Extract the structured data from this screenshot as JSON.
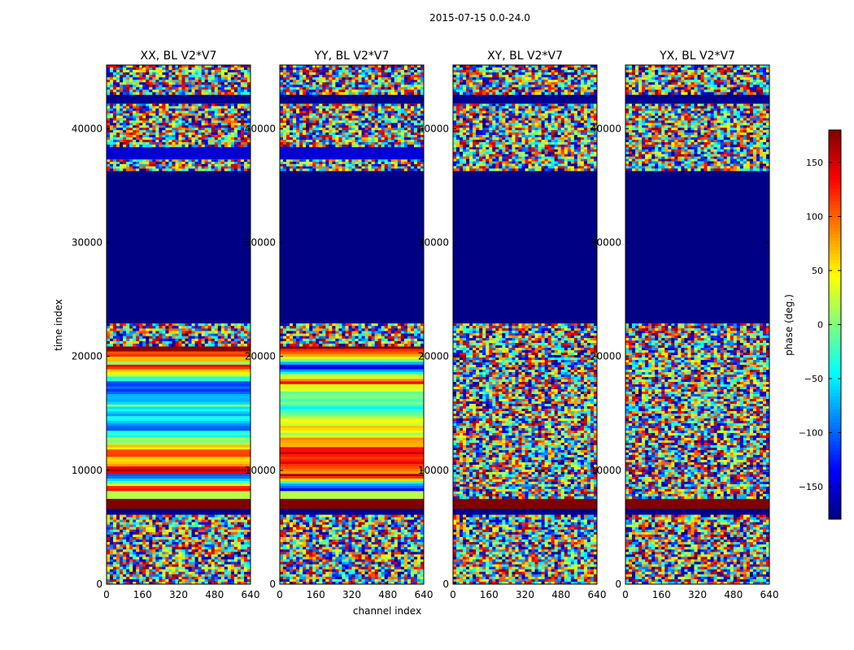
{
  "figure_title": "2015-07-15 0.0-24.0",
  "chart_data": {
    "type": "heatmap",
    "suptitle": "2015-07-15 0.0-24.0",
    "xlabel": "channel index",
    "ylabel": "time index",
    "xlim": [
      0,
      640
    ],
    "ylim": [
      0,
      45600
    ],
    "x_ticks": [
      0,
      160,
      320,
      480,
      640
    ],
    "y_ticks": [
      0,
      10000,
      20000,
      30000,
      40000
    ],
    "colorbar": {
      "label": "phase (deg.)",
      "range": [
        -180,
        180
      ],
      "ticks": [
        -150,
        -100,
        -50,
        0,
        50,
        100,
        150
      ],
      "tick_labels": [
        "−150",
        "−100",
        "−50",
        "0",
        "50",
        "100",
        "150"
      ],
      "colormap": "jet",
      "colors": [
        "#00007f",
        "#0000ff",
        "#007fff",
        "#00ffff",
        "#7fff7f",
        "#ffff00",
        "#ff7f00",
        "#ff0000",
        "#7f0000"
      ]
    },
    "panels": [
      {
        "title": "XX, BL V2*V7",
        "bands": [
          {
            "t0": 0,
            "t1": 6100,
            "kind": "noise"
          },
          {
            "t0": 6100,
            "t1": 6600,
            "phase": -175
          },
          {
            "t0": 6600,
            "t1": 7500,
            "phase": 180
          },
          {
            "t0": 7500,
            "t1": 8200,
            "phase": 20
          },
          {
            "t0": 8200,
            "t1": 9700,
            "kind": "gradient",
            "from": -120,
            "to": 150
          },
          {
            "t0": 9700,
            "t1": 11200,
            "kind": "gradient",
            "from": 60,
            "to": 160
          },
          {
            "t0": 11200,
            "t1": 13500,
            "kind": "gradient",
            "from": -60,
            "to": 140
          },
          {
            "t0": 13500,
            "t1": 15800,
            "kind": "gradient",
            "from": -20,
            "to": -100
          },
          {
            "t0": 15800,
            "t1": 17600,
            "kind": "gradient",
            "from": -110,
            "to": -40
          },
          {
            "t0": 17600,
            "t1": 19300,
            "kind": "gradient",
            "from": 150,
            "to": -80
          },
          {
            "t0": 19300,
            "t1": 20900,
            "kind": "gradient",
            "from": 170,
            "to": 30
          },
          {
            "t0": 20900,
            "t1": 22900,
            "kind": "noise"
          },
          {
            "t0": 22900,
            "t1": 36300,
            "phase": -178
          },
          {
            "t0": 36300,
            "t1": 37300,
            "kind": "noise"
          },
          {
            "t0": 37300,
            "t1": 38400,
            "phase": -150
          },
          {
            "t0": 38400,
            "t1": 42200,
            "kind": "noise"
          },
          {
            "t0": 42200,
            "t1": 43000,
            "phase": -175
          },
          {
            "t0": 43000,
            "t1": 45600,
            "kind": "noise"
          }
        ]
      },
      {
        "title": "YY, BL V2*V7",
        "bands": [
          {
            "t0": 0,
            "t1": 6100,
            "kind": "noise"
          },
          {
            "t0": 6100,
            "t1": 6600,
            "phase": -175
          },
          {
            "t0": 6600,
            "t1": 7500,
            "phase": 180
          },
          {
            "t0": 7500,
            "t1": 8200,
            "phase": 20
          },
          {
            "t0": 8200,
            "t1": 9700,
            "kind": "gradient",
            "from": 150,
            "to": -150
          },
          {
            "t0": 9700,
            "t1": 11200,
            "kind": "gradient",
            "from": 140,
            "to": 100
          },
          {
            "t0": 11200,
            "t1": 13500,
            "kind": "gradient",
            "from": 20,
            "to": 150
          },
          {
            "t0": 13500,
            "t1": 15800,
            "kind": "gradient",
            "from": -40,
            "to": 60
          },
          {
            "t0": 15800,
            "t1": 17600,
            "kind": "gradient",
            "from": 30,
            "to": -30
          },
          {
            "t0": 17600,
            "t1": 19300,
            "kind": "gradient",
            "from": -150,
            "to": 120
          },
          {
            "t0": 19300,
            "t1": 20900,
            "kind": "gradient",
            "from": 160,
            "to": -60
          },
          {
            "t0": 20900,
            "t1": 22900,
            "kind": "noise"
          },
          {
            "t0": 22900,
            "t1": 36300,
            "phase": -178
          },
          {
            "t0": 36300,
            "t1": 37300,
            "kind": "noise"
          },
          {
            "t0": 37300,
            "t1": 38400,
            "phase": -150
          },
          {
            "t0": 38400,
            "t1": 42200,
            "kind": "noise"
          },
          {
            "t0": 42200,
            "t1": 43000,
            "phase": -175
          },
          {
            "t0": 43000,
            "t1": 45600,
            "kind": "noise"
          }
        ]
      },
      {
        "title": "XY, BL V2*V7",
        "bands": [
          {
            "t0": 0,
            "t1": 6100,
            "kind": "noise"
          },
          {
            "t0": 6100,
            "t1": 6600,
            "phase": -175
          },
          {
            "t0": 6600,
            "t1": 7500,
            "phase": 180
          },
          {
            "t0": 7500,
            "t1": 22900,
            "kind": "noise"
          },
          {
            "t0": 22900,
            "t1": 36300,
            "phase": -178
          },
          {
            "t0": 36300,
            "t1": 38400,
            "kind": "noise"
          },
          {
            "t0": 38400,
            "t1": 42200,
            "kind": "noise"
          },
          {
            "t0": 42200,
            "t1": 43000,
            "phase": -175
          },
          {
            "t0": 43000,
            "t1": 45600,
            "kind": "noise"
          }
        ]
      },
      {
        "title": "YX, BL V2*V7",
        "bands": [
          {
            "t0": 0,
            "t1": 6100,
            "kind": "noise"
          },
          {
            "t0": 6100,
            "t1": 6600,
            "phase": -175
          },
          {
            "t0": 6600,
            "t1": 7500,
            "phase": 180
          },
          {
            "t0": 7500,
            "t1": 22900,
            "kind": "noise"
          },
          {
            "t0": 22900,
            "t1": 36300,
            "phase": -178
          },
          {
            "t0": 36300,
            "t1": 38400,
            "kind": "noise"
          },
          {
            "t0": 38400,
            "t1": 42200,
            "kind": "noise"
          },
          {
            "t0": 42200,
            "t1": 43000,
            "phase": -175
          },
          {
            "t0": 43000,
            "t1": 45600,
            "kind": "noise"
          }
        ]
      }
    ]
  }
}
